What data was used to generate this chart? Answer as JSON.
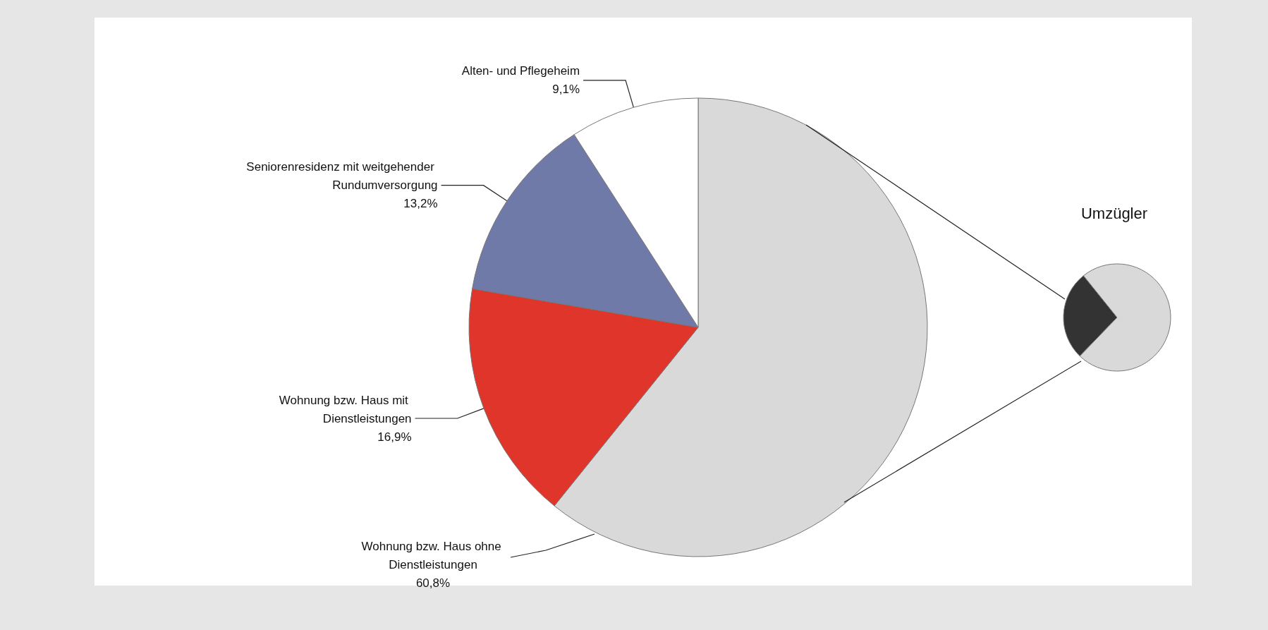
{
  "chart_data": [
    {
      "type": "pie",
      "categories": [
        "Wohnung bzw. Haus ohne Dienstleistungen",
        "Wohnung bzw. Haus mit Dienstleistungen",
        "Seniorenresidenz mit weitgehender Rundumversorgung",
        "Alten- und Pflegeheim"
      ],
      "values": [
        60.8,
        16.9,
        13.2,
        9.1
      ],
      "value_labels": [
        "60,8%",
        "16,9%",
        "13,2%",
        "9,1%"
      ],
      "colors": [
        "#d9d9d9",
        "#e0352b",
        "#6f7aa8",
        "#ffffff"
      ]
    },
    {
      "type": "pie",
      "title": "Umzügler",
      "categories": [
        null,
        null
      ],
      "values": [
        27,
        73
      ],
      "colors": [
        "#333333",
        "#d9d9d9"
      ]
    }
  ]
}
